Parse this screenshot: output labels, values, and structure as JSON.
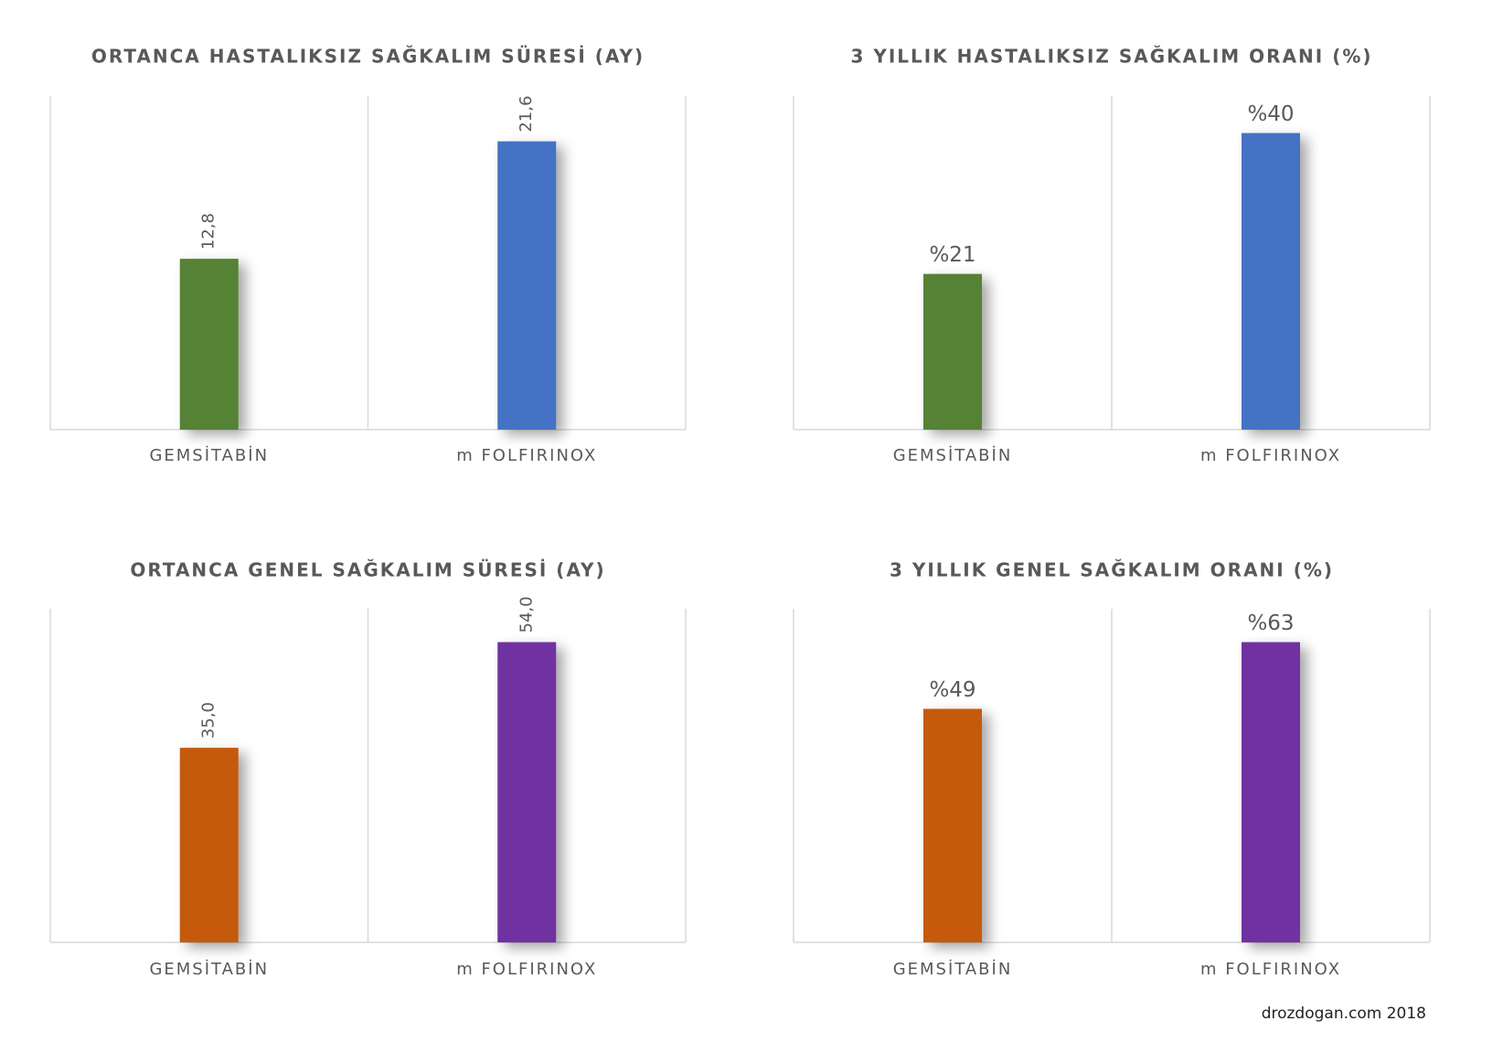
{
  "chart_data": [
    {
      "type": "bar",
      "title": "ORTANCA HASTALIKSIZ SAĞKALIM SÜRESİ (AY)",
      "categories": [
        "GEMSİTABİN",
        "m FOLFIRINOX"
      ],
      "values": [
        12.8,
        21.6
      ],
      "value_labels": [
        "12,8",
        "21,6"
      ],
      "colors": [
        "#548235",
        "#4472c4"
      ],
      "ylim": [
        0,
        25
      ]
    },
    {
      "type": "bar",
      "title": "3 YILLIK HASTALIKSIZ SAĞKALIM ORANI (%)",
      "categories": [
        "GEMSİTABİN",
        "m FOLFIRINOX"
      ],
      "values": [
        21,
        40
      ],
      "value_labels": [
        "%21",
        "%40"
      ],
      "colors": [
        "#548235",
        "#4472c4"
      ],
      "ylim": [
        0,
        45
      ]
    },
    {
      "type": "bar",
      "title": "ORTANCA GENEL SAĞKALIM SÜRESİ (AY)",
      "categories": [
        "GEMSİTABİN",
        "m FOLFIRINOX"
      ],
      "values": [
        35.0,
        54.0
      ],
      "value_labels": [
        "35,0",
        "54,0"
      ],
      "colors": [
        "#c55a11",
        "#7030a0"
      ],
      "ylim": [
        0,
        60
      ]
    },
    {
      "type": "bar",
      "title": "3 YILLIK GENEL SAĞKALIM ORANI (%)",
      "categories": [
        "GEMSİTABİN",
        "m FOLFIRINOX"
      ],
      "values": [
        49,
        63
      ],
      "value_labels": [
        "%49",
        "%63"
      ],
      "colors": [
        "#c55a11",
        "#7030a0"
      ],
      "ylim": [
        0,
        70
      ]
    }
  ],
  "footer": "drozdogan.com 2018"
}
